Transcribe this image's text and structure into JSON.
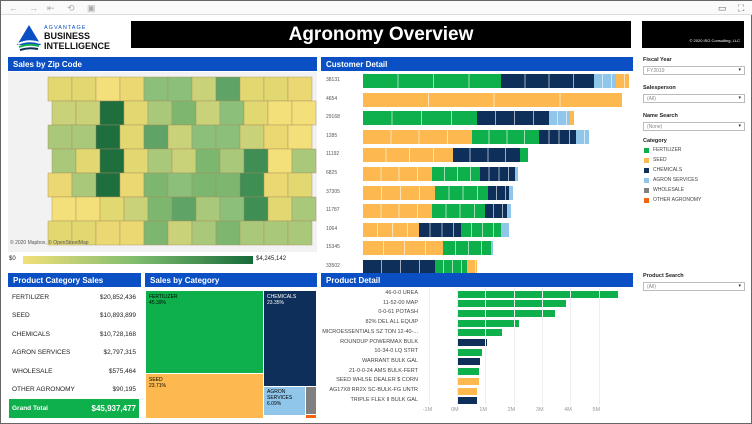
{
  "browser": {
    "icons": [
      "back-icon",
      "forward-icon",
      "first-icon",
      "refresh-icon",
      "save-icon",
      "comment-icon",
      "fullscreen-icon"
    ]
  },
  "logo": {
    "line1": "AGVANTAGE",
    "line2": "BUSINESS",
    "line3": "INTELLIGENCE"
  },
  "title": "Agronomy Overview",
  "copyright": "© 2020 ISG Consulting, LLC",
  "colors": {
    "fertilizer": "#0db04b",
    "seed": "#fdb94f",
    "chemicals": "#0d2f5a",
    "agron_services": "#90c6ea",
    "wholesale": "#808080",
    "other_agronomy": "#f7630c",
    "header": "#0a4fc4"
  },
  "map": {
    "title": "Sales by Zip Code",
    "attribution": "© 2020 Mapbox, © OpenStreetMap",
    "legend_min": "$0",
    "legend_max": "$4,245,142"
  },
  "customer_detail": {
    "title": "Customer Detail"
  },
  "product_category_sales": {
    "title": "Product Category Sales",
    "rows": [
      {
        "name": "FERTILIZER",
        "value": "$20,852,436"
      },
      {
        "name": "SEED",
        "value": "$10,893,899"
      },
      {
        "name": "CHEMICALS",
        "value": "$10,728,168"
      },
      {
        "name": "AGRON SERVICES",
        "value": "$2,797,315"
      },
      {
        "name": "WHOLESALE",
        "value": "$575,464"
      },
      {
        "name": "OTHER AGRONOMY",
        "value": "$90,195"
      }
    ],
    "total_label": "Grand Total",
    "total_value": "$45,937,477"
  },
  "sales_by_category": {
    "title": "Sales by Category",
    "tiles": [
      {
        "name": "FERTILIZER",
        "pct": "45.39%"
      },
      {
        "name": "CHEMICALS",
        "pct": "23.35%"
      },
      {
        "name": "SEED",
        "pct": "23.71%"
      },
      {
        "name": "AGRON SERVICES",
        "pct": "6.09%"
      }
    ]
  },
  "filters": {
    "fiscal_year": {
      "label": "Fiscal Year",
      "value": "FY2019"
    },
    "salesperson": {
      "label": "Salesperson",
      "value": "(All)"
    },
    "name_search": {
      "label": "Name Search",
      "value": "(None)"
    },
    "category_label": "Category",
    "categories": [
      {
        "name": "FERTILIZER",
        "color": "#0db04b"
      },
      {
        "name": "SEED",
        "color": "#fdb94f"
      },
      {
        "name": "CHEMICALS",
        "color": "#0d2f5a"
      },
      {
        "name": "AGRON SERVICES",
        "color": "#90c6ea"
      },
      {
        "name": "WHOLESALE",
        "color": "#808080"
      },
      {
        "name": "OTHER AGRONOMY",
        "color": "#f7630c"
      }
    ],
    "product_search": {
      "label": "Product Search",
      "value": "(All)"
    }
  },
  "chart_data": [
    {
      "type": "bar",
      "title": "Customer Detail",
      "stacked": true,
      "orientation": "horizontal",
      "note_units": "relative to largest customer",
      "categories": [
        "38131",
        "4654",
        "29168",
        "1285",
        "11192",
        "6825",
        "37305",
        "11787",
        "1064",
        "15345",
        "33502"
      ],
      "segments": [
        [
          [
            "fertilizer",
            0.52
          ],
          [
            "chemicals",
            0.35
          ],
          [
            "agron_services",
            0.08
          ],
          [
            "seed",
            0.05
          ]
        ],
        [
          [
            "seed",
            0.975
          ]
        ],
        [
          [
            "fertilizer",
            0.43
          ],
          [
            "chemicals",
            0.27
          ],
          [
            "agron_services",
            0.08
          ],
          [
            "seed",
            0.013
          ]
        ],
        [
          [
            "seed",
            0.41
          ],
          [
            "fertilizer",
            0.25
          ],
          [
            "chemicals",
            0.14
          ],
          [
            "agron_services",
            0.05
          ]
        ],
        [
          [
            "seed",
            0.34
          ],
          [
            "chemicals",
            0.25
          ],
          [
            "fertilizer",
            0.03
          ]
        ],
        [
          [
            "seed",
            0.26
          ],
          [
            "fertilizer",
            0.18
          ],
          [
            "chemicals",
            0.13
          ],
          [
            "agron_services",
            0.013
          ]
        ],
        [
          [
            "seed",
            0.27
          ],
          [
            "fertilizer",
            0.2
          ],
          [
            "chemicals",
            0.08
          ],
          [
            "agron_services",
            0.013
          ]
        ],
        [
          [
            "seed",
            0.26
          ],
          [
            "fertilizer",
            0.2
          ],
          [
            "chemicals",
            0.08
          ],
          [
            "agron_services",
            0.016
          ]
        ],
        [
          [
            "seed",
            0.21
          ],
          [
            "chemicals",
            0.16
          ],
          [
            "fertilizer",
            0.15
          ],
          [
            "agron_services",
            0.028
          ]
        ],
        [
          [
            "seed",
            0.3
          ],
          [
            "fertilizer",
            0.18
          ],
          [
            "agron_services",
            0.009
          ]
        ],
        [
          [
            "chemicals",
            0.27
          ],
          [
            "fertilizer",
            0.12
          ],
          [
            "seed",
            0.04
          ]
        ]
      ]
    },
    {
      "type": "bar",
      "title": "Product Detail",
      "orientation": "horizontal",
      "xlim": [
        -1,
        5.8
      ],
      "ticks": [
        "-1M",
        "0M",
        "1M",
        "2M",
        "3M",
        "4M",
        "5M"
      ],
      "categories": [
        "46-0-0 UREA",
        "11-52-00 MAP",
        "0-0-61 POTASH",
        "82% DEL ALL EQUIP",
        "MICROESSENTIALS SZ TON 12-40-...",
        "ROUNDUP POWERMAX BULK",
        "10-34-0 LQ STRT",
        "WARRANT BULK GAL",
        "21-0-0-24 AMS BULK-FERT",
        "SEED WHLSE DEALER $ CORN",
        "AG17X8 RR2X SC-BULK-FG UNTR",
        "TRIPLE FLEX II BULK GAL"
      ],
      "values": [
        5.7,
        3.85,
        3.45,
        2.2,
        1.6,
        1.05,
        0.9,
        0.8,
        0.78,
        0.77,
        0.72,
        0.72
      ],
      "category": [
        "fertilizer",
        "fertilizer",
        "fertilizer",
        "fertilizer",
        "fertilizer",
        "chemicals",
        "fertilizer",
        "chemicals",
        "fertilizer",
        "seed",
        "seed",
        "chemicals"
      ]
    }
  ]
}
